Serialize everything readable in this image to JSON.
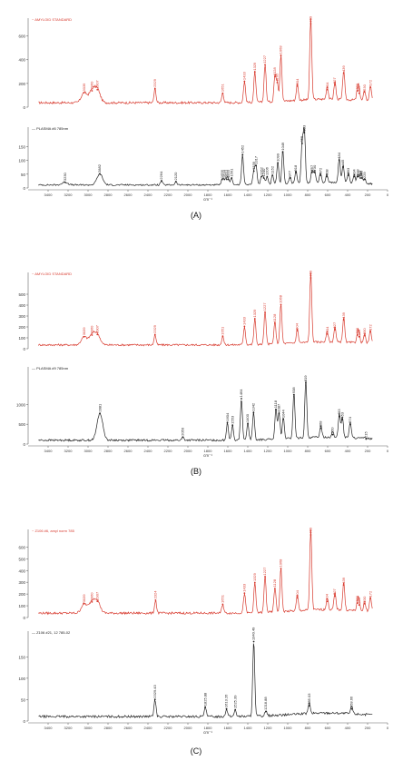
{
  "panels": [
    {
      "caption": "(A)",
      "chart_data": [
        {
          "type": "line",
          "title": "~ AMYLOID STANDARD",
          "color": "#d83a2e",
          "ylim": [
            0,
            750
          ],
          "yticks": [
            0,
            200,
            400,
            600
          ],
          "xlim": [
            3600,
            0
          ],
          "peaks": [
            3039,
            2960,
            2907,
            2329,
            1651,
            1433,
            1329,
            1227,
            1128,
            1105,
            1068,
            904,
            769,
            604,
            527,
            439,
            300,
            285,
            230,
            172
          ],
          "peak_labels": [
            "3039",
            "2960",
            "2907",
            "2329",
            "1651",
            "1433",
            "1329",
            "1227",
            "1128",
            "1105",
            "1068",
            "904",
            "769",
            "604",
            "527",
            "439",
            "300",
            "285",
            "230",
            "172"
          ],
          "peak_heights": [
            85,
            100,
            110,
            120,
            80,
            180,
            260,
            320,
            220,
            170,
            400,
            140,
            700,
            110,
            150,
            250,
            100,
            80,
            90,
            130
          ]
        },
        {
          "type": "line",
          "title": "— PLASMA #6 785nm",
          "color": "#222222",
          "ylim": [
            0,
            220
          ],
          "yticks": [
            0,
            50,
            100,
            150
          ],
          "xlim": [
            3600,
            0
          ],
          "xticks": [
            3400,
            3200,
            3000,
            2800,
            2600,
            2400,
            2200,
            2000,
            1800,
            1600,
            1400,
            1200,
            1000,
            800,
            600,
            400,
            200,
            0
          ],
          "xlabel": "cm⁻¹",
          "peaks": [
            3230,
            2882,
            2264,
            2120,
            1656,
            1634,
            1610,
            1593,
            1561,
            1452,
            1339,
            1317,
            1262,
            1240,
            1206,
            1152,
            1099,
            1049,
            977,
            918,
            855,
            833,
            757,
            730,
            672,
            608,
            484,
            445,
            393,
            334,
            298,
            273,
            259,
            229
          ],
          "peak_labels": [
            "3230",
            "2882",
            "2264",
            "2120",
            "1656",
            "1634",
            "1610",
            "1593",
            "1561",
            "1452",
            "1339",
            "1317",
            "1262",
            "1240",
            "1206",
            "1152",
            "1099",
            "1049",
            "977",
            "918",
            "855",
            "833",
            "757",
            "730",
            "672",
            "608",
            "484",
            "445",
            "393",
            "334",
            "298",
            "273",
            "259",
            "229"
          ],
          "peak_heights": [
            10,
            40,
            15,
            12,
            20,
            20,
            20,
            20,
            25,
            110,
            50,
            70,
            30,
            25,
            30,
            35,
            80,
            120,
            25,
            45,
            150,
            190,
            45,
            45,
            35,
            30,
            90,
            65,
            35,
            30,
            30,
            25,
            25,
            20
          ]
        }
      ]
    },
    {
      "caption": "(B)",
      "chart_data": [
        {
          "type": "line",
          "title": "~ AMYLOID STANDARD",
          "color": "#d83a2e",
          "ylim": [
            0,
            700
          ],
          "yticks": [
            0,
            100,
            200,
            300,
            400,
            500
          ],
          "xlim": [
            3600,
            0
          ],
          "peaks": [
            3039,
            2960,
            2907,
            2329,
            1651,
            1433,
            1329,
            1227,
            1128,
            1068,
            904,
            769,
            604,
            527,
            439,
            300,
            285,
            230,
            172
          ],
          "peak_labels": [
            "3039",
            "2960",
            "2907",
            "2329",
            "1651",
            "1433",
            "1329",
            "1227",
            "1128",
            "1068",
            "904",
            "769",
            "604",
            "527",
            "439",
            "300",
            "285",
            "230",
            "172"
          ],
          "peak_heights": [
            75,
            90,
            95,
            95,
            80,
            170,
            240,
            300,
            200,
            370,
            130,
            650,
            100,
            140,
            230,
            90,
            75,
            85,
            120
          ]
        },
        {
          "type": "line",
          "title": "— PLASMA #9 785nm",
          "color": "#222222",
          "ylim": [
            0,
            1950
          ],
          "yticks": [
            0,
            500,
            1000
          ],
          "xlim": [
            3600,
            0
          ],
          "xticks": [
            3400,
            3200,
            3000,
            2800,
            2600,
            2400,
            2200,
            2000,
            1800,
            1600,
            1400,
            1200,
            1000,
            800,
            600,
            400,
            200,
            0
          ],
          "xlabel": "cm⁻¹",
          "peaks": [
            2881,
            2050,
            1604,
            1553,
            1464,
            1400,
            1342,
            1118,
            1087,
            1044,
            938,
            819,
            668,
            550,
            483,
            453,
            374,
            215
          ],
          "peak_labels": [
            "2881",
            "2050",
            "1604",
            "1553",
            "1464",
            "1400",
            "1342",
            "1118",
            "1087",
            "1044",
            "938",
            "819",
            "668",
            "550",
            "483",
            "453",
            "374",
            "215"
          ],
          "peak_heights": [
            680,
            80,
            450,
            380,
            1050,
            420,
            700,
            780,
            680,
            530,
            1150,
            1450,
            300,
            140,
            600,
            520,
            400,
            30
          ]
        }
      ]
    },
    {
      "caption": "(C)",
      "chart_data": [
        {
          "type": "line",
          "title": "~ Z106 #6, amyl norm 785",
          "color": "#d83a2e",
          "ylim": [
            0,
            750
          ],
          "yticks": [
            0,
            100,
            200,
            300,
            400,
            500,
            600
          ],
          "xlim": [
            3600,
            0
          ],
          "peaks": [
            3039,
            2960,
            2907,
            2324,
            1651,
            1433,
            1329,
            1227,
            1128,
            1068,
            904,
            769,
            604,
            527,
            439,
            300,
            285,
            230,
            172
          ],
          "peak_labels": [
            "3039",
            "2960",
            "2907",
            "2324",
            "1651",
            "1433",
            "1329",
            "1227",
            "1128",
            "1068",
            "904",
            "769",
            "604",
            "527",
            "439",
            "300",
            "285",
            "230",
            "172"
          ],
          "peak_heights": [
            80,
            95,
            100,
            110,
            75,
            170,
            260,
            310,
            210,
            380,
            130,
            700,
            100,
            145,
            240,
            85,
            70,
            80,
            125
          ]
        },
        {
          "type": "line",
          "title": "— Z106 #21, 12 785-02",
          "color": "#222222",
          "ylim": [
            0,
            210
          ],
          "yticks": [
            0,
            50,
            100,
            150
          ],
          "xlim": [
            3600,
            0
          ],
          "xticks": [
            3400,
            3200,
            3000,
            2800,
            2600,
            2400,
            2200,
            2000,
            1800,
            1600,
            1400,
            1200,
            1000,
            800,
            600,
            400,
            200,
            0
          ],
          "xlabel": "cm⁻¹",
          "peaks": [
            2329.43,
            1825.88,
            1613.26,
            1525.39,
            1340.49,
            1218.88,
            785.03,
            358.66
          ],
          "peak_labels": [
            "2329.43",
            "1825.88",
            "1613.26",
            "1525.39",
            "1340.49",
            "1218.88",
            "785.03",
            "358.66"
          ],
          "peak_heights": [
            40,
            22,
            18,
            16,
            175,
            12,
            25,
            18
          ]
        }
      ]
    }
  ]
}
